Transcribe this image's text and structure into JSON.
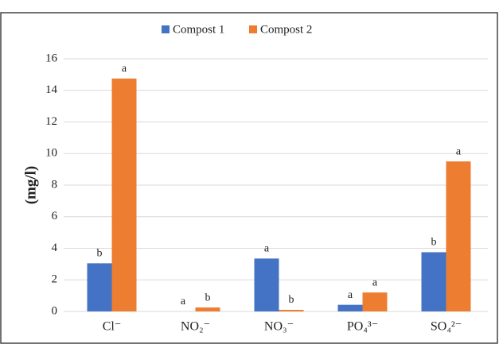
{
  "chart_data": {
    "type": "bar",
    "y_label": "(mg/l)",
    "categories": [
      "Cl⁻",
      "NO₂⁻",
      "NO₃⁻",
      "PO₄³⁻",
      "SO₄²⁻"
    ],
    "series": [
      {
        "name": "Compost 1",
        "color": "#4472c4",
        "values": [
          3.05,
          0,
          3.35,
          0.42,
          3.75
        ],
        "significance": [
          "b",
          "a",
          "a",
          "a",
          "b"
        ]
      },
      {
        "name": "Compost 2",
        "color": "#ed7d31",
        "values": [
          14.75,
          0.25,
          0.1,
          1.2,
          9.5
        ],
        "significance": [
          "a",
          "b",
          "b",
          "a",
          "a"
        ]
      }
    ],
    "ylim": [
      0,
      16
    ],
    "yticks": [
      0,
      2,
      4,
      6,
      8,
      10,
      12,
      14,
      16
    ],
    "grid": true,
    "legend": "top"
  }
}
